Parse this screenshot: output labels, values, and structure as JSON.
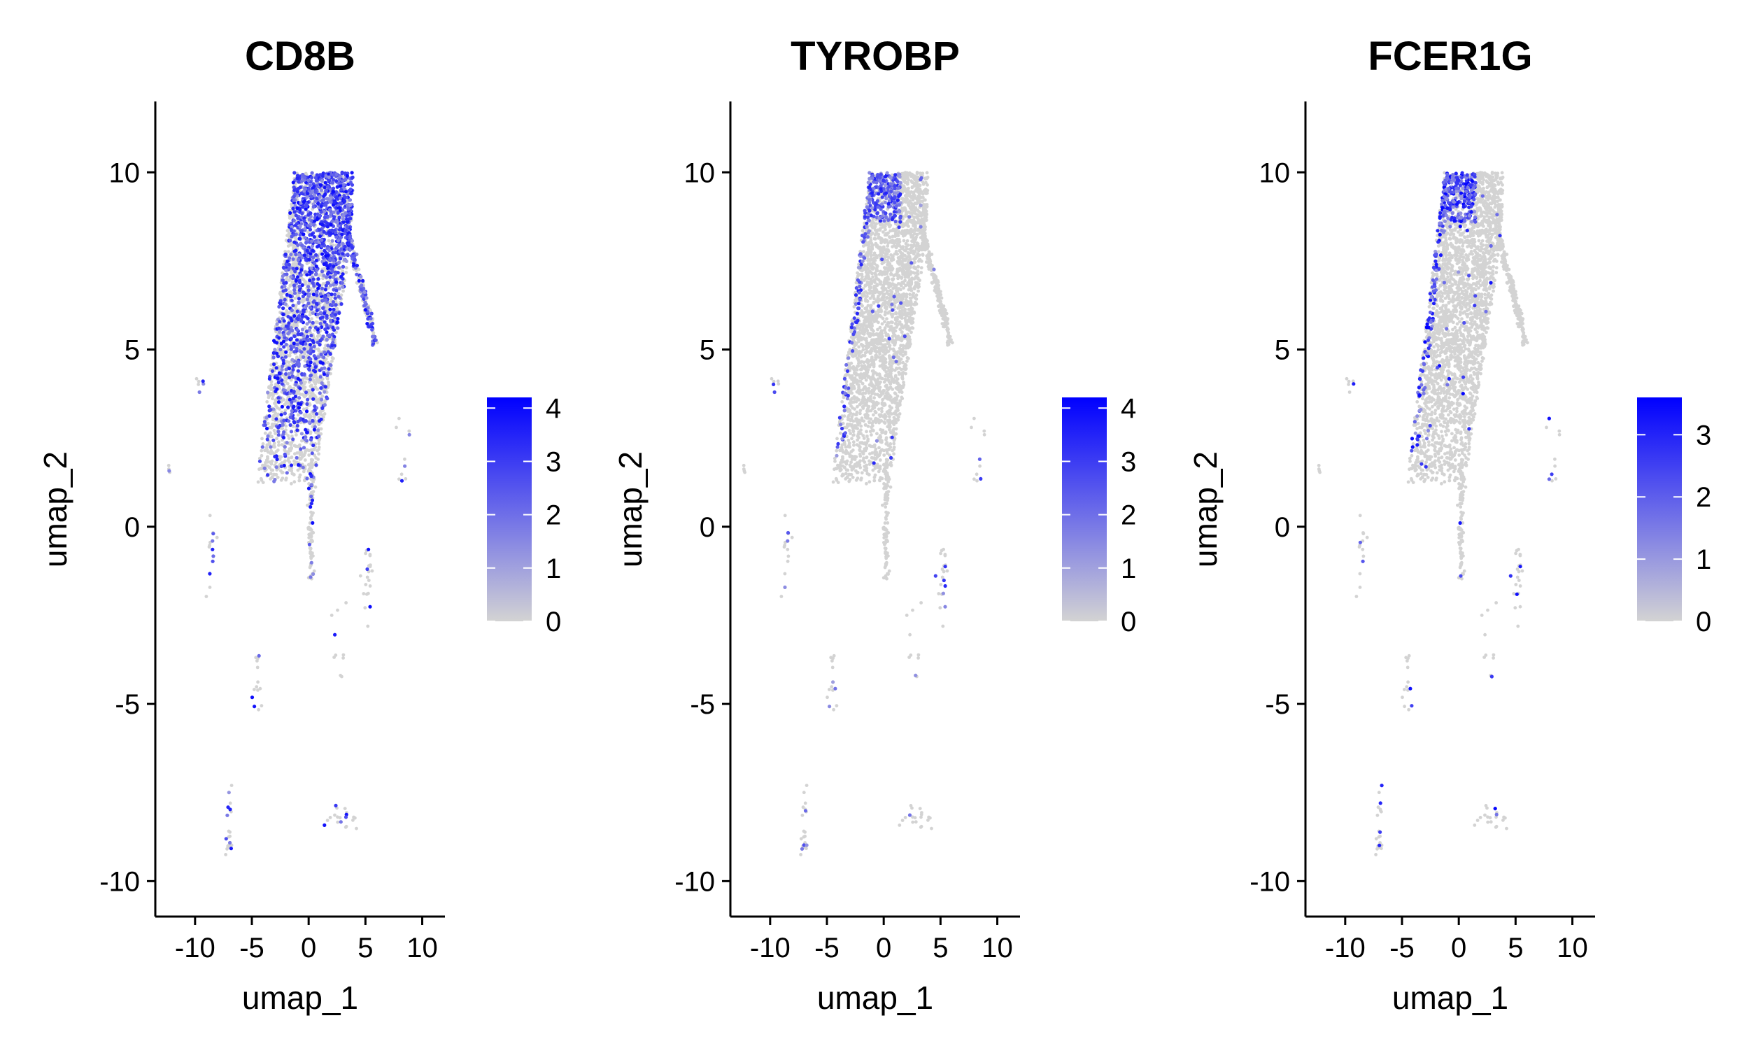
{
  "chart_data": [
    {
      "type": "scatter",
      "title": "CD8B",
      "xlabel": "umap_1",
      "ylabel": "umap_2",
      "xlim": [
        -13.5,
        12
      ],
      "ylim": [
        -11,
        12
      ],
      "xticks": [
        "-10",
        "-5",
        "0",
        "5",
        "10"
      ],
      "xtick_values": [
        -10,
        -5,
        0,
        5,
        10
      ],
      "yticks": [
        "10",
        "5",
        "0",
        "-5",
        "-10"
      ],
      "ytick_values": [
        10,
        5,
        0,
        -5,
        -10
      ],
      "grid": false,
      "legend": {
        "placement": "right",
        "type": "colorbar",
        "min": 0,
        "max": 4.2,
        "labels": [
          "4",
          "3",
          "2",
          "1",
          "0"
        ],
        "label_values": [
          4,
          3,
          2,
          1,
          0
        ]
      },
      "colors": {
        "low": "#d3d3d3",
        "high": "#0000ff"
      },
      "expression_profile": "diffuse",
      "expressed_fraction": 0.33
    },
    {
      "type": "scatter",
      "title": "TYROBP",
      "xlabel": "umap_1",
      "ylabel": "umap_2",
      "xlim": [
        -13.5,
        12
      ],
      "ylim": [
        -11,
        12
      ],
      "xticks": [
        "-10",
        "-5",
        "0",
        "5",
        "10"
      ],
      "xtick_values": [
        -10,
        -5,
        0,
        5,
        10
      ],
      "yticks": [
        "10",
        "5",
        "0",
        "-5",
        "-10"
      ],
      "ytick_values": [
        10,
        5,
        0,
        -5,
        -10
      ],
      "grid": false,
      "legend": {
        "placement": "right",
        "type": "colorbar",
        "min": 0,
        "max": 4.2,
        "labels": [
          "4",
          "3",
          "2",
          "1",
          "0"
        ],
        "label_values": [
          4,
          3,
          2,
          1,
          0
        ]
      },
      "colors": {
        "low": "#d3d3d3",
        "high": "#0000ff"
      },
      "expression_profile": "top-left",
      "expressed_fraction": 0.06
    },
    {
      "type": "scatter",
      "title": "FCER1G",
      "xlabel": "umap_1",
      "ylabel": "umap_2",
      "xlim": [
        -13.5,
        12
      ],
      "ylim": [
        -11,
        12
      ],
      "xticks": [
        "-10",
        "-5",
        "0",
        "5",
        "10"
      ],
      "xtick_values": [
        -10,
        -5,
        0,
        5,
        10
      ],
      "yticks": [
        "10",
        "5",
        "0",
        "-5",
        "-10"
      ],
      "ytick_values": [
        10,
        5,
        0,
        -5,
        -10
      ],
      "grid": false,
      "legend": {
        "placement": "right",
        "type": "colorbar",
        "min": 0,
        "max": 3.6,
        "labels": [
          "3",
          "2",
          "1",
          "0"
        ],
        "label_values": [
          3,
          2,
          1,
          0
        ]
      },
      "colors": {
        "low": "#d3d3d3",
        "high": "#0000ff"
      },
      "expression_profile": "top-left",
      "expressed_fraction": 0.05
    }
  ]
}
